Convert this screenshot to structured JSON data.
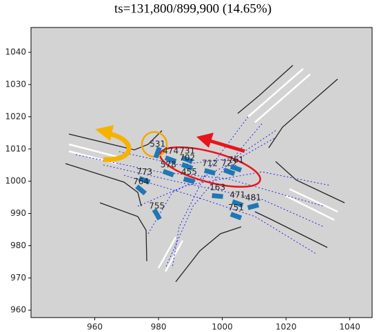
{
  "chart_data": {
    "type": "scatter",
    "title": "ts=131,800/899,900 (14.65%)",
    "xlim": [
      940,
      1047
    ],
    "ylim": [
      957.7,
      1047.7
    ],
    "xticks": [
      960,
      980,
      1000,
      1020,
      1040
    ],
    "yticks": [
      960,
      970,
      980,
      990,
      1000,
      1010,
      1020,
      1030,
      1040
    ],
    "color": "#1f77b4",
    "vehicles": [
      {
        "id": "531",
        "x": 979.7,
        "y": 1008.9,
        "heading": -70
      },
      {
        "id": "474",
        "x": 983.8,
        "y": 1006.7,
        "heading": 20
      },
      {
        "id": "731",
        "x": 989.0,
        "y": 1006.7,
        "heading": 20
      },
      {
        "id": "702",
        "x": 989.0,
        "y": 1004.6,
        "heading": 20
      },
      {
        "id": "578",
        "x": 983.1,
        "y": 1002.5,
        "heading": 20
      },
      {
        "id": "455",
        "x": 989.6,
        "y": 1000.3,
        "heading": 15
      },
      {
        "id": "712",
        "x": 996.1,
        "y": 1002.9,
        "heading": 15
      },
      {
        "id": "722",
        "x": 1002.2,
        "y": 1002.9,
        "heading": 20
      },
      {
        "id": "761",
        "x": 1004.3,
        "y": 1004.0,
        "heading": 20
      },
      {
        "id": "773",
        "x": 975.6,
        "y": 1000.3,
        "heading": 20
      },
      {
        "id": "764",
        "x": 974.5,
        "y": 997.3,
        "heading": 40
      },
      {
        "id": "163",
        "x": 998.5,
        "y": 995.4,
        "heading": 5
      },
      {
        "id": "471",
        "x": 1004.8,
        "y": 993.1,
        "heading": 20
      },
      {
        "id": "481",
        "x": 1009.7,
        "y": 992.2,
        "heading": -15
      },
      {
        "id": "751",
        "x": 1004.3,
        "y": 989.2,
        "heading": 20
      },
      {
        "id": "755",
        "x": 979.5,
        "y": 989.7,
        "heading": 60
      }
    ]
  }
}
